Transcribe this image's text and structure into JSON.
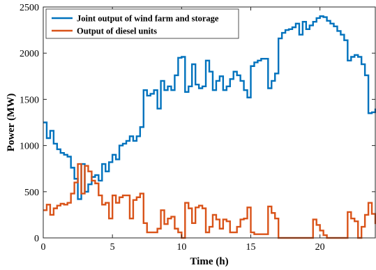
{
  "chart_data": {
    "type": "line",
    "step": true,
    "xlabel": "Time (h)",
    "ylabel": "Power (MW)",
    "xlim": [
      0,
      24
    ],
    "ylim": [
      0,
      2500
    ],
    "xticks": [
      0,
      5,
      10,
      15,
      20
    ],
    "yticks": [
      0,
      500,
      1000,
      1500,
      2000,
      2500
    ],
    "grid": false,
    "legend_position": "top-left",
    "series": [
      {
        "name": "Joint output of wind farm and storage",
        "color": "#0072BD",
        "x": [
          0,
          0.25,
          0.5,
          0.75,
          1,
          1.25,
          1.5,
          1.75,
          2,
          2.25,
          2.5,
          2.75,
          3,
          3.25,
          3.5,
          3.75,
          4,
          4.25,
          4.5,
          4.75,
          5,
          5.25,
          5.5,
          5.75,
          6,
          6.25,
          6.5,
          6.75,
          7,
          7.25,
          7.5,
          7.75,
          8,
          8.25,
          8.5,
          8.75,
          9,
          9.25,
          9.5,
          9.75,
          10,
          10.25,
          10.5,
          10.75,
          11,
          11.25,
          11.5,
          11.75,
          12,
          12.25,
          12.5,
          12.75,
          13,
          13.25,
          13.5,
          13.75,
          14,
          14.25,
          14.5,
          14.75,
          15,
          15.25,
          15.5,
          15.75,
          16,
          16.25,
          16.5,
          16.75,
          17,
          17.25,
          17.5,
          17.75,
          18,
          18.25,
          18.5,
          18.75,
          19,
          19.25,
          19.5,
          19.75,
          20,
          20.25,
          20.5,
          20.75,
          21,
          21.25,
          21.5,
          21.75,
          22,
          22.25,
          22.5,
          22.75,
          23,
          23.25,
          23.5,
          23.75,
          24
        ],
        "y": [
          1250,
          1080,
          1160,
          1020,
          960,
          920,
          900,
          880,
          760,
          640,
          420,
          800,
          500,
          580,
          660,
          680,
          620,
          800,
          720,
          820,
          900,
          850,
          1000,
          1020,
          1050,
          1100,
          1050,
          1100,
          1200,
          1600,
          1540,
          1560,
          1600,
          1400,
          1700,
          1600,
          1640,
          1600,
          1760,
          1950,
          1960,
          1580,
          1640,
          1880,
          1660,
          1620,
          1640,
          1920,
          1800,
          1600,
          1700,
          1750,
          1600,
          1640,
          1720,
          1800,
          1760,
          1700,
          1600,
          1520,
          1860,
          1900,
          1920,
          1940,
          1940,
          1620,
          1700,
          1780,
          2160,
          2220,
          2250,
          2260,
          2280,
          2320,
          2200,
          2340,
          2260,
          2300,
          2340,
          2380,
          2400,
          2390,
          2350,
          2320,
          2290,
          2240,
          2200,
          2140,
          1920,
          1960,
          1980,
          1960,
          1880,
          1760,
          1350,
          1360,
          1400
        ]
      },
      {
        "name": "Output of diesel units",
        "color": "#D95319",
        "x": [
          0,
          0.25,
          0.5,
          0.75,
          1,
          1.25,
          1.5,
          1.75,
          2,
          2.25,
          2.5,
          2.75,
          3,
          3.25,
          3.5,
          3.75,
          4,
          4.25,
          4.5,
          4.75,
          5,
          5.25,
          5.5,
          5.75,
          6,
          6.25,
          6.5,
          6.75,
          7,
          7.25,
          7.5,
          7.75,
          8,
          8.25,
          8.5,
          8.75,
          9,
          9.25,
          9.5,
          9.75,
          10,
          10.25,
          10.5,
          10.75,
          11,
          11.25,
          11.5,
          11.75,
          12,
          12.25,
          12.5,
          12.75,
          13,
          13.25,
          13.5,
          13.75,
          14,
          14.25,
          14.5,
          14.75,
          15,
          15.25,
          15.5,
          15.75,
          16,
          16.25,
          16.5,
          16.75,
          17,
          17.25,
          17.5,
          17.75,
          18,
          18.25,
          18.5,
          18.75,
          19,
          19.25,
          19.5,
          19.75,
          20,
          20.25,
          20.5,
          20.75,
          21,
          21.25,
          21.5,
          21.75,
          22,
          22.25,
          22.5,
          22.75,
          23,
          23.25,
          23.5,
          23.75,
          24
        ],
        "y": [
          300,
          360,
          250,
          320,
          350,
          370,
          360,
          380,
          480,
          600,
          800,
          480,
          780,
          720,
          620,
          590,
          460,
          360,
          380,
          210,
          460,
          380,
          440,
          460,
          460,
          210,
          410,
          440,
          480,
          160,
          60,
          60,
          60,
          100,
          300,
          150,
          210,
          230,
          100,
          60,
          0,
          380,
          320,
          160,
          330,
          350,
          320,
          60,
          120,
          250,
          200,
          100,
          200,
          180,
          60,
          60,
          120,
          200,
          210,
          330,
          60,
          40,
          40,
          40,
          40,
          340,
          270,
          210,
          0,
          0,
          0,
          0,
          0,
          0,
          0,
          0,
          0,
          0,
          200,
          140,
          80,
          30,
          0,
          0,
          0,
          0,
          0,
          0,
          280,
          210,
          180,
          0,
          120,
          250,
          380,
          260,
          150
        ]
      }
    ]
  }
}
